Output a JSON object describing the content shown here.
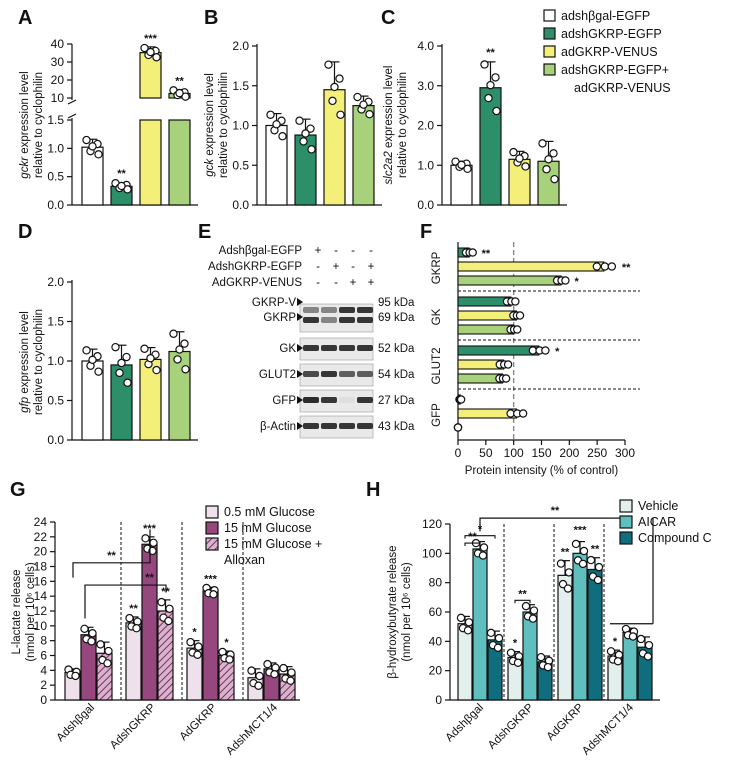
{
  "figure": {
    "panel_letters": [
      "A",
      "B",
      "C",
      "D",
      "E",
      "F",
      "G",
      "H"
    ],
    "legend_top": [
      {
        "label": "adshβgal-EGFP",
        "color": "#ffffff"
      },
      {
        "label": "adshGKRP-EGFP",
        "color": "#2c8f69"
      },
      {
        "label": "adGKRP-VENUS",
        "color": "#f4ef78"
      },
      {
        "label": "adshGKRP-EGFP+",
        "color": "#a7d17a"
      },
      {
        "label": "adGKRP-VENUS",
        "color": "#a7d17a"
      }
    ]
  },
  "chart_data": [
    {
      "id": "A",
      "type": "bar",
      "title": "",
      "ylabel_gene": "gckr",
      "ylabel_rest": "expression level",
      "ylabel_line2": "relative to cyclophilin",
      "categories": [
        "adshβgal-EGFP",
        "adshGKRP-EGFP",
        "adGKRP-VENUS",
        "adshGKRP-EGFP+ adGKRP-VENUS"
      ],
      "values": [
        1.02,
        0.33,
        35.2,
        12.5
      ],
      "errors": [
        0.14,
        0.06,
        3.2,
        2.2
      ],
      "significance": [
        "",
        "**",
        "***",
        "**"
      ],
      "lower_axis": {
        "ylim": [
          0,
          1.5
        ],
        "ticks": [
          "0.0",
          "0.5",
          "1.0",
          "1.5"
        ]
      },
      "upper_axis": {
        "ylim": [
          10,
          40
        ],
        "ticks": [
          "10",
          "20",
          "30",
          "40"
        ]
      }
    },
    {
      "id": "B",
      "type": "bar",
      "ylabel_gene": "gck",
      "ylabel_rest": "expression level",
      "ylabel_line2": "relative to cyclophilin",
      "categories": [
        "adshβgal-EGFP",
        "adshGKRP-EGFP",
        "adGKRP-VENUS",
        "adshGKRP-EGFP+ adGKRP-VENUS"
      ],
      "values": [
        1.0,
        0.88,
        1.45,
        1.25
      ],
      "errors": [
        0.15,
        0.2,
        0.35,
        0.12
      ],
      "significance": [
        "",
        "",
        "",
        ""
      ],
      "ylim": [
        0,
        2.0
      ],
      "ticks": [
        "0.0",
        "0.5",
        "1.0",
        "1.5",
        "2.0"
      ]
    },
    {
      "id": "C",
      "type": "bar",
      "ylabel_gene": "slc2a2",
      "ylabel_rest": "expression level",
      "ylabel_line2": "relative to cyclophilin",
      "categories": [
        "adshβgal-EGFP",
        "adshGKRP-EGFP",
        "adGKRP-VENUS",
        "adshGKRP-EGFP+ adGKRP-VENUS"
      ],
      "values": [
        1.0,
        2.95,
        1.15,
        1.1
      ],
      "errors": [
        0.1,
        0.65,
        0.2,
        0.5
      ],
      "significance": [
        "",
        "**",
        "",
        ""
      ],
      "ylim": [
        0,
        4.0
      ],
      "ticks": [
        "0.0",
        "1.0",
        "2.0",
        "3.0",
        "4.0"
      ]
    },
    {
      "id": "D",
      "type": "bar",
      "ylabel_gene": "gfp",
      "ylabel_rest": "expression level",
      "ylabel_line2": "relative to cyclophilin",
      "categories": [
        "adshβgal-EGFP",
        "adshGKRP-EGFP",
        "adGKRP-VENUS",
        "adshGKRP-EGFP+ adGKRP-VENUS"
      ],
      "values": [
        1.0,
        0.95,
        1.02,
        1.12
      ],
      "errors": [
        0.15,
        0.25,
        0.15,
        0.25
      ],
      "significance": [
        "",
        "",
        "",
        ""
      ],
      "ylim": [
        0,
        2.0
      ],
      "ticks": [
        "0.0",
        "0.5",
        "1.0",
        "1.5",
        "2.0"
      ]
    },
    {
      "id": "F",
      "type": "bar",
      "orientation": "horizontal",
      "xlabel": "Protein intensity (% of control)",
      "xlim": [
        0,
        300
      ],
      "ticks": [
        "0",
        "50",
        "100",
        "150",
        "200",
        "250",
        "300"
      ],
      "reference_line": 100,
      "groups": [
        {
          "label": "GKRP",
          "values": [
            20,
            262,
            185
          ],
          "errors": [
            8,
            18,
            10
          ],
          "significance": [
            "**",
            "**",
            "*"
          ]
        },
        {
          "label": "GK",
          "values": [
            95,
            105,
            100
          ],
          "errors": [
            10,
            8,
            8
          ],
          "significance": [
            "",
            "",
            ""
          ]
        },
        {
          "label": "GLUT2",
          "values": [
            145,
            82,
            80
          ],
          "errors": [
            15,
            10,
            8
          ],
          "significance": [
            "*",
            "",
            ""
          ]
        },
        {
          "label": "GFP",
          "values": [
            4,
            105,
            0
          ],
          "errors": [
            2,
            15,
            0
          ],
          "significance": [
            "",
            "",
            ""
          ]
        }
      ],
      "series": [
        "adshGKRP-EGFP",
        "adGKRP-VENUS",
        "adshGKRP-EGFP+ adGKRP-VENUS"
      ]
    },
    {
      "id": "G",
      "type": "bar",
      "ylabel_line1": "L-lactate release",
      "ylabel_line2": "(nmol per 10⁶ cells)",
      "categories": [
        "Adshβgal",
        "AdshGKRP",
        "AdGKRP",
        "AdshMCT1/4"
      ],
      "series": [
        {
          "name": "0.5 mM Glucose",
          "values": [
            3.7,
            10.4,
            7.0,
            3.0
          ],
          "errors": [
            0.5,
            0.8,
            1.0,
            1.2
          ],
          "significance": [
            "",
            "**",
            "*",
            ""
          ]
        },
        {
          "name": "15 mM Glucose",
          "values": [
            8.8,
            21.0,
            14.7,
            4.2
          ],
          "errors": [
            1.0,
            1.0,
            0.5,
            0.8
          ],
          "significance": [
            "",
            "***",
            "***",
            ""
          ]
        },
        {
          "name": "15 mM Glucose + Alloxan",
          "values": [
            6.3,
            12.0,
            6.0,
            3.5
          ],
          "errors": [
            1.5,
            1.5,
            0.6,
            1.0
          ],
          "significance": [
            "",
            "**",
            "*",
            ""
          ]
        }
      ],
      "legend": [
        "0.5 mM Glucose",
        "15  mM Glucose",
        "15 mM Glucose +",
        "Alloxan"
      ],
      "ylim": [
        0,
        24
      ],
      "ticks": [
        "0",
        "2",
        "4",
        "6",
        "8",
        "10",
        "12",
        "14",
        "16",
        "18",
        "20",
        "22",
        "24"
      ],
      "brackets": [
        "**",
        "**"
      ]
    },
    {
      "id": "H",
      "type": "bar",
      "ylabel_line1": "β-hydroxybutyrate release",
      "ylabel_line2": "(nmol per 10⁶ cells)",
      "categories": [
        "Adshβgal",
        "AdshGKRP",
        "AdGKRP",
        "AdshMCT1/4"
      ],
      "series": [
        {
          "name": "Vehicle",
          "values": [
            52,
            29,
            85,
            30
          ],
          "errors": [
            5,
            4,
            10,
            4
          ],
          "significance": [
            "",
            "*",
            "**",
            "*"
          ]
        },
        {
          "name": "AICAR",
          "values": [
            103,
            60,
            100,
            46
          ],
          "errors": [
            5,
            5,
            8,
            3
          ],
          "significance": [
            "",
            "",
            "",
            ""
          ]
        },
        {
          "name": "Compound C",
          "values": [
            41,
            26,
            89,
            36
          ],
          "errors": [
            6,
            4,
            8,
            7
          ],
          "significance": [
            "",
            "",
            "**",
            ""
          ]
        }
      ],
      "legend": [
        "Vehicle",
        "AICAR",
        "Compound C"
      ],
      "ylim": [
        0,
        120
      ],
      "ticks": [
        "0",
        "20",
        "40",
        "60",
        "80",
        "100",
        "120"
      ],
      "brackets": [
        "**",
        "*",
        "**",
        "***",
        "**"
      ]
    }
  ],
  "blot": {
    "conditions": [
      {
        "label": "Adshβgal-EGFP",
        "marks": [
          "+",
          "-",
          "-",
          "-"
        ]
      },
      {
        "label": "AdshGKRP-EGFP",
        "marks": [
          "-",
          "+",
          "-",
          "+"
        ]
      },
      {
        "label": "AdGKRP-VENUS",
        "marks": [
          "-",
          "-",
          "+",
          "+"
        ]
      }
    ],
    "rows": [
      {
        "label": "GKRP-V",
        "kda": "95 kDa"
      },
      {
        "label": "GKRP",
        "kda": "69 kDa"
      },
      {
        "label": "GK",
        "kda": "52 kDa"
      },
      {
        "label": "GLUT2",
        "kda": "54 kDa"
      },
      {
        "label": "GFP",
        "kda": "27 kDa"
      },
      {
        "label": "β-Actin",
        "kda": "43 kDa"
      }
    ]
  }
}
